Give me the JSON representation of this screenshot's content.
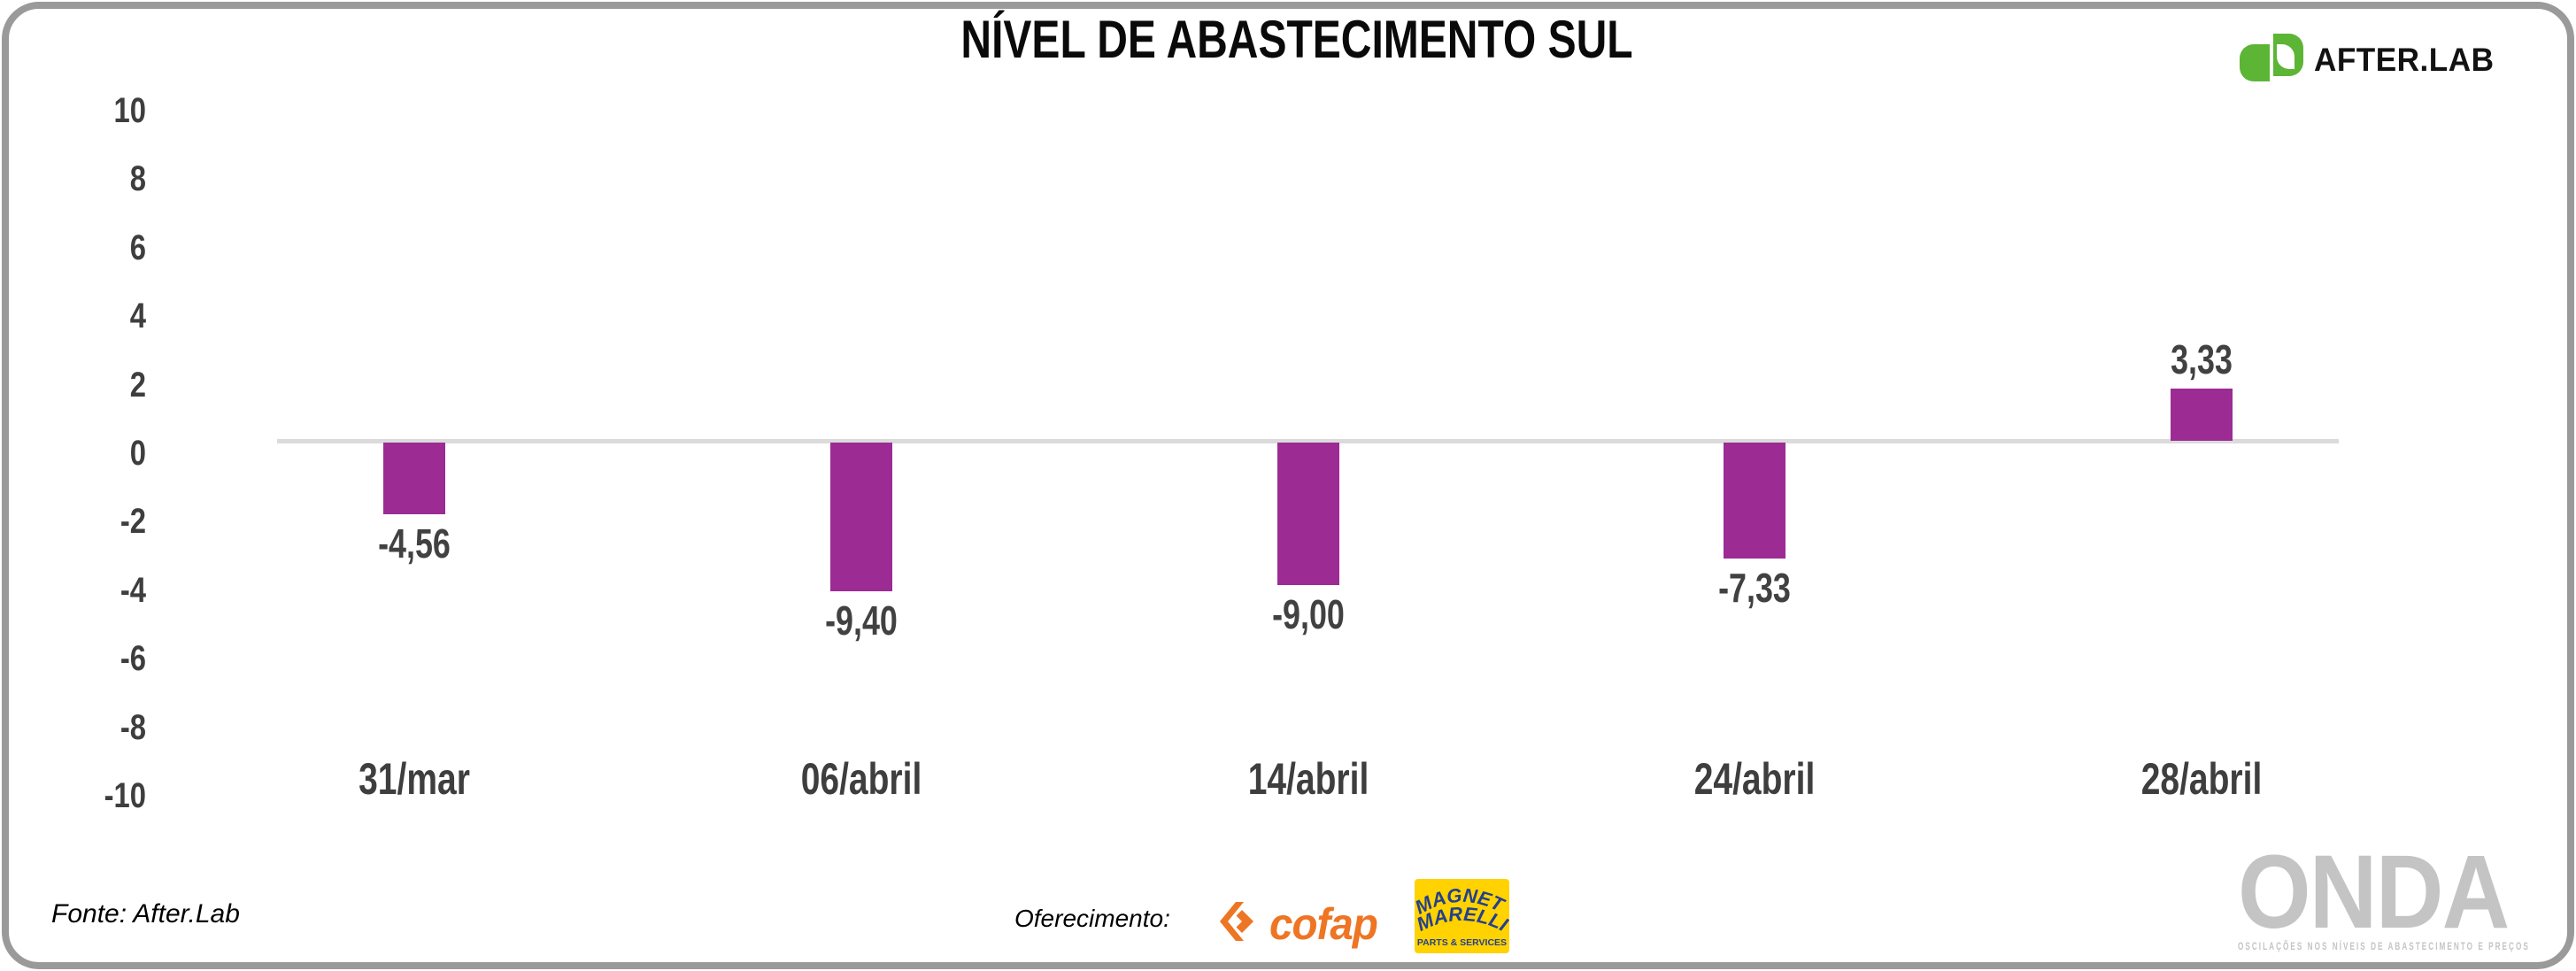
{
  "title": "NÍVEL DE ABASTECIMENTO SUL",
  "brand": {
    "name": "AFTER.LAB"
  },
  "chart_data": {
    "type": "bar",
    "title": "NÍVEL DE ABASTECIMENTO SUL",
    "categories": [
      "31/mar",
      "06/abril",
      "14/abril",
      "24/abril",
      "28/abril"
    ],
    "values": [
      -4.56,
      -9.4,
      -9.0,
      -7.33,
      3.33
    ],
    "value_labels": [
      "-4,56",
      "-9,40",
      "-9,00",
      "-7,33",
      "3,33"
    ],
    "xlabel": "",
    "ylabel": "",
    "ylim": [
      -10,
      10
    ],
    "yticks": [
      10,
      8,
      6,
      4,
      2,
      0,
      -2,
      -4,
      -6,
      -8,
      -10
    ],
    "grid": false,
    "legend": false,
    "bar_color": "#9C2B94",
    "axis_label_color": "#3E3E3E",
    "zero_line_color": "#DBDBDB"
  },
  "footer": {
    "source": "Fonte: After.Lab",
    "sponsorship_label": "Oferecimento:",
    "sponsors": {
      "cofap": {
        "name": "cofap",
        "color": "#EE7523"
      },
      "magneti_marelli": {
        "line1": "MAGNETI",
        "line2": "MARELLI",
        "subtext": "PARTS & SERVICES",
        "bg": "#FFD200",
        "fg": "#24408C"
      }
    },
    "watermark": {
      "title": "ONDA",
      "subtitle": "OSCILAÇÕES NOS NÍVEIS DE ABASTECIMENTO E PREÇOS",
      "color": "#C4C4C4"
    }
  },
  "colors": {
    "afterlab_green": "#5CB535",
    "title_color": "#0A0A0A",
    "card_border": "#9A9A9A"
  }
}
